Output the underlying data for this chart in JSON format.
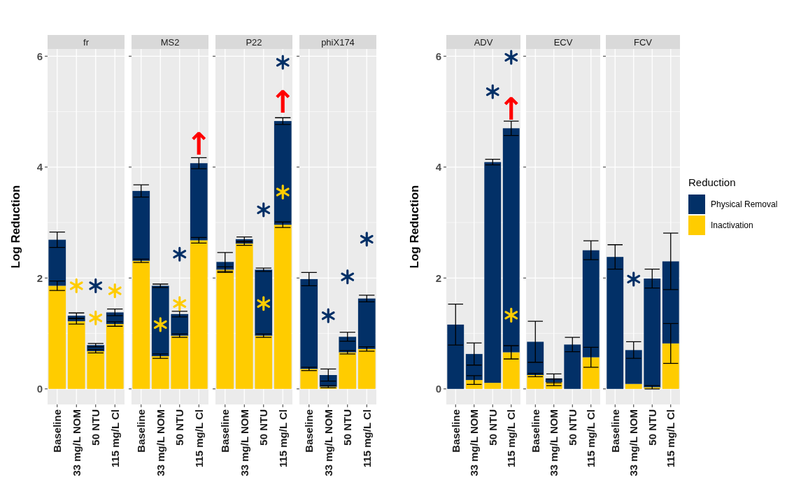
{
  "chart_data": [
    {
      "type": "bar",
      "title": "fr",
      "ylabel": "Log Reduction",
      "stacked": true,
      "grid": true,
      "ylim": [
        -0.28,
        6.13
      ],
      "yticks": [
        0,
        2,
        4,
        6
      ],
      "categories": [
        "Baseline",
        "33 mg/L NOM",
        "50 NTU",
        "115 mg/L Cl"
      ],
      "series": [
        {
          "color": "#ffcc00",
          "values": [
            1.86,
            1.22,
            0.68,
            1.17
          ],
          "errors": [
            0.085,
            0.05,
            0.03,
            0.04
          ]
        },
        {
          "color": "#023067",
          "values": [
            0.83,
            0.1,
            0.11,
            0.21
          ],
          "errors": [
            0.14,
            0.05,
            0.03,
            0.06
          ]
        },
        {
          "type": "scatter",
          "marker": "cross",
          "color": "#ffcc00",
          "x": [
            "33 mg/L NOM",
            "50 NTU",
            "115 mg/L Cl"
          ],
          "values": [
            1.86,
            1.28,
            1.77
          ]
        },
        {
          "type": "scatter",
          "marker": "cross",
          "color": "#023067",
          "x": [
            "50 NTU"
          ],
          "values": [
            1.86
          ]
        }
      ]
    },
    {
      "type": "bar",
      "title": "MS2",
      "stacked": true,
      "grid": true,
      "tick_labels": "x",
      "ylim": [
        -0.28,
        6.13
      ],
      "yticks": [
        0,
        2,
        4,
        6
      ],
      "categories": [
        "Baseline",
        "33 mg/L NOM",
        "50 NTU",
        "115 mg/L Cl"
      ],
      "series": [
        {
          "color": "#ffcc00",
          "values": [
            2.31,
            0.59,
            0.96,
            2.68
          ],
          "errors": [
            0.03,
            0.04,
            0.03,
            0.05
          ]
        },
        {
          "color": "#023067",
          "values": [
            1.26,
            1.27,
            0.39,
            1.39
          ],
          "errors": [
            0.11,
            0.03,
            0.05,
            0.1
          ]
        },
        {
          "type": "scatter",
          "marker": "cross",
          "color": "#ffcc00",
          "x": [
            "33 mg/L NOM",
            "50 NTU"
          ],
          "values": [
            1.16,
            1.54
          ]
        },
        {
          "type": "scatter",
          "marker": "cross",
          "color": "#023067",
          "x": [
            "50 NTU"
          ],
          "values": [
            2.43
          ]
        }
      ],
      "annotations": [
        {
          "text": "↑",
          "x": "115 mg/L Cl",
          "y": 4.07
        }
      ]
    },
    {
      "type": "bar",
      "title": "P22",
      "stacked": true,
      "grid": true,
      "tick_labels": "x",
      "ylim": [
        -0.28,
        6.13
      ],
      "yticks": [
        0,
        2,
        4,
        6
      ],
      "categories": [
        "Baseline",
        "33 mg/L NOM",
        "50 NTU",
        "115 mg/L Cl"
      ],
      "series": [
        {
          "color": "#ffcc00",
          "values": [
            2.15,
            2.62,
            0.96,
            2.96
          ],
          "errors": [
            0.05,
            0.03,
            0.03,
            0.05
          ]
        },
        {
          "color": "#023067",
          "values": [
            0.14,
            0.08,
            1.19,
            1.87
          ],
          "errors": [
            0.17,
            0.04,
            0.03,
            0.06
          ]
        },
        {
          "type": "scatter",
          "marker": "cross",
          "color": "#ffcc00",
          "x": [
            "50 NTU",
            "115 mg/L Cl"
          ],
          "values": [
            1.54,
            3.55
          ]
        },
        {
          "type": "scatter",
          "marker": "cross",
          "color": "#023067",
          "x": [
            "50 NTU",
            "115 mg/L Cl"
          ],
          "values": [
            3.23,
            5.89
          ]
        }
      ],
      "annotations": [
        {
          "text": "↑",
          "x": "115 mg/L Cl",
          "y": 4.83
        }
      ]
    },
    {
      "type": "bar",
      "title": "phiX174",
      "stacked": true,
      "grid": true,
      "tick_labels": "x",
      "ylim": [
        -0.28,
        6.13
      ],
      "yticks": [
        0,
        2,
        4,
        6
      ],
      "categories": [
        "Baseline",
        "33 mg/L NOM",
        "50 NTU",
        "115 mg/L Cl"
      ],
      "series": [
        {
          "color": "#ffcc00",
          "values": [
            0.36,
            0.04,
            0.66,
            0.72
          ],
          "errors": [
            0.03,
            0.02,
            0.03,
            0.04
          ]
        },
        {
          "color": "#023067",
          "values": [
            1.62,
            0.21,
            0.28,
            0.91
          ],
          "errors": [
            0.12,
            0.11,
            0.08,
            0.06
          ]
        },
        {
          "type": "scatter",
          "marker": "cross",
          "color": "#023067",
          "x": [
            "33 mg/L NOM",
            "50 NTU",
            "115 mg/L Cl"
          ],
          "values": [
            1.32,
            2.02,
            2.7
          ]
        }
      ]
    },
    {
      "type": "bar",
      "title": "ADV",
      "ylabel": "Log Reduction",
      "stacked": true,
      "grid": true,
      "ylim": [
        -0.28,
        6.13
      ],
      "yticks": [
        0,
        2,
        4,
        6
      ],
      "categories": [
        "Baseline",
        "33 mg/L NOM",
        "50 NTU",
        "115 mg/L Cl"
      ],
      "series": [
        {
          "color": "#ffcc00",
          "values": [
            0,
            0.16,
            0.11,
            0.66
          ],
          "errors": [
            null,
            0.08,
            null,
            0.12
          ]
        },
        {
          "color": "#023067",
          "values": [
            1.16,
            0.47,
            3.98,
            4.04
          ],
          "errors": [
            0.37,
            0.2,
            0.05,
            0.13
          ]
        },
        {
          "type": "scatter",
          "marker": "cross",
          "color": "#ffcc00",
          "x": [
            "115 mg/L Cl"
          ],
          "values": [
            1.33
          ]
        },
        {
          "type": "scatter",
          "marker": "cross",
          "color": "#023067",
          "x": [
            "50 NTU",
            "115 mg/L Cl"
          ],
          "values": [
            5.36,
            5.98
          ]
        }
      ],
      "annotations": [
        {
          "text": "↑",
          "x": "115 mg/L Cl",
          "y": 4.7
        }
      ]
    },
    {
      "type": "bar",
      "title": "ECV",
      "stacked": true,
      "grid": true,
      "tick_labels": "x",
      "ylim": [
        -0.28,
        6.13
      ],
      "yticks": [
        0,
        2,
        4,
        6
      ],
      "categories": [
        "Baseline",
        "33 mg/L NOM",
        "50 NTU",
        "115 mg/L Cl"
      ],
      "series": [
        {
          "color": "#ffcc00",
          "values": [
            0.25,
            0.12,
            0,
            0.57
          ],
          "errors": [
            0.03,
            0.06,
            null,
            0.18
          ]
        },
        {
          "color": "#023067",
          "values": [
            0.6,
            0.07,
            0.8,
            1.93
          ],
          "errors": [
            0.37,
            0.08,
            0.13,
            0.17
          ]
        }
      ]
    },
    {
      "type": "bar",
      "title": "FCV",
      "stacked": true,
      "grid": true,
      "tick_labels": "x",
      "legend": "right",
      "legend_title": "Reduction",
      "ylim": [
        -0.28,
        6.13
      ],
      "yticks": [
        0,
        2,
        4,
        6
      ],
      "categories": [
        "Baseline",
        "33 mg/L NOM",
        "50 NTU",
        "115 mg/L Cl"
      ],
      "series": [
        {
          "name": "Inactivation",
          "color": "#ffcc00",
          "values": [
            0,
            0.09,
            0.03,
            0.82
          ],
          "errors": [
            null,
            null,
            0.03,
            0.36
          ]
        },
        {
          "name": "Physical Removal",
          "color": "#023067",
          "values": [
            2.38,
            0.61,
            1.96,
            1.48
          ],
          "errors": [
            0.22,
            0.15,
            0.17,
            0.51
          ]
        },
        {
          "type": "scatter",
          "marker": "cross",
          "color": "#023067",
          "x": [
            "33 mg/L NOM"
          ],
          "values": [
            1.98
          ]
        }
      ]
    }
  ]
}
